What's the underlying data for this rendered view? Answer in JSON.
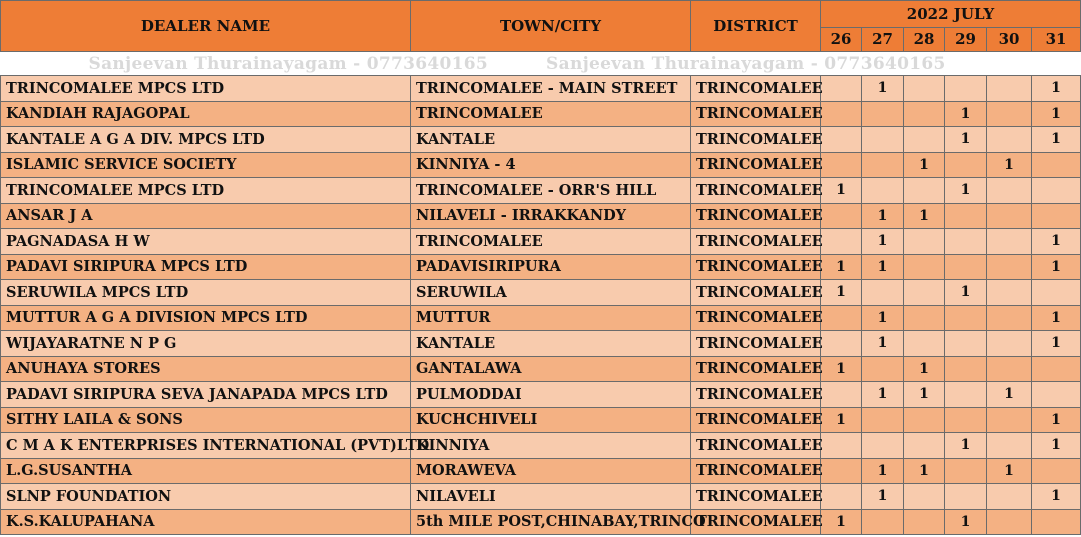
{
  "header": {
    "dealer_name": "DEALER NAME",
    "town_city": "TOWN/CITY",
    "district": "DISTRICT",
    "period": "2022 JULY",
    "days": [
      "26",
      "27",
      "28",
      "29",
      "30",
      "31"
    ]
  },
  "watermark": {
    "text1": "Sanjeevan Thurainayagam - 0773640165",
    "text2": "Sanjeevan Thurainayagam - 0773640165"
  },
  "rows": [
    {
      "dealer": "TRINCOMALEE MPCS LTD",
      "town": "TRINCOMALEE - MAIN STREET",
      "district": "TRINCOMALEE",
      "d": [
        "",
        "1",
        "",
        "",
        "",
        "1"
      ]
    },
    {
      "dealer": "KANDIAH RAJAGOPAL",
      "town": "TRINCOMALEE",
      "district": "TRINCOMALEE",
      "d": [
        "",
        "",
        "",
        "1",
        "",
        "1"
      ]
    },
    {
      "dealer": "KANTALE A G A DIV. MPCS LTD",
      "town": "KANTALE",
      "district": "TRINCOMALEE",
      "d": [
        "",
        "",
        "",
        "1",
        "",
        "1"
      ]
    },
    {
      "dealer": "ISLAMIC SERVICE SOCIETY",
      "town": "KINNIYA - 4",
      "district": "TRINCOMALEE",
      "d": [
        "",
        "",
        "1",
        "",
        "1",
        ""
      ]
    },
    {
      "dealer": "TRINCOMALEE MPCS LTD",
      "town": "TRINCOMALEE - ORR'S  HILL",
      "district": "TRINCOMALEE",
      "d": [
        "1",
        "",
        "",
        "1",
        "",
        ""
      ]
    },
    {
      "dealer": "ANSAR  J A",
      "town": "NILAVELI - IRRAKKANDY",
      "district": "TRINCOMALEE",
      "d": [
        "",
        "1",
        "1",
        "",
        "",
        ""
      ]
    },
    {
      "dealer": "PAGNADASA  H W",
      "town": "TRINCOMALEE",
      "district": "TRINCOMALEE",
      "d": [
        "",
        "1",
        "",
        "",
        "",
        "1"
      ]
    },
    {
      "dealer": "PADAVI SIRIPURA MPCS LTD",
      "town": "PADAVISIRIPURA",
      "district": "TRINCOMALEE",
      "d": [
        "1",
        "1",
        "",
        "",
        "",
        "1"
      ]
    },
    {
      "dealer": "SERUWILA MPCS LTD",
      "town": "SERUWILA",
      "district": "TRINCOMALEE",
      "d": [
        "1",
        "",
        "",
        "1",
        "",
        ""
      ]
    },
    {
      "dealer": "MUTTUR A G A DIVISION MPCS LTD",
      "town": "MUTTUR",
      "district": "TRINCOMALEE",
      "d": [
        "",
        "1",
        "",
        "",
        "",
        "1"
      ]
    },
    {
      "dealer": "WIJAYARATNE  N P G",
      "town": "KANTALE",
      "district": "TRINCOMALEE",
      "d": [
        "",
        "1",
        "",
        "",
        "",
        "1"
      ]
    },
    {
      "dealer": "ANUHAYA STORES",
      "town": "GANTALAWA",
      "district": "TRINCOMALEE",
      "d": [
        "1",
        "",
        "1",
        "",
        "",
        ""
      ]
    },
    {
      "dealer": "PADAVI SIRIPURA SEVA JANAPADA MPCS LTD",
      "town": "PULMODDAI",
      "district": "TRINCOMALEE",
      "d": [
        "",
        "1",
        "1",
        "",
        "1",
        ""
      ]
    },
    {
      "dealer": "SITHY LAILA  & SONS",
      "town": "KUCHCHIVELI",
      "district": "TRINCOMALEE",
      "d": [
        "1",
        "",
        "",
        "",
        "",
        "1"
      ]
    },
    {
      "dealer": "C M A K ENTERPRISES INTERNATIONAL (PVT)LTD",
      "town": "KINNIYA",
      "district": "TRINCOMALEE",
      "d": [
        "",
        "",
        "",
        "1",
        "",
        "1"
      ]
    },
    {
      "dealer": "L.G.SUSANTHA",
      "town": "MORAWEVA",
      "district": "TRINCOMALEE",
      "d": [
        "",
        "1",
        "1",
        "",
        "1",
        ""
      ]
    },
    {
      "dealer": "SLNP FOUNDATION",
      "town": "NILAVELI",
      "district": "TRINCOMALEE",
      "d": [
        "",
        "1",
        "",
        "",
        "",
        "1"
      ]
    },
    {
      "dealer": "K.S.KALUPAHANA",
      "town": "5th MILE POST,CHINABAY,TRINCO",
      "district": "TRINCOMALEE",
      "d": [
        "1",
        "",
        "",
        "1",
        "",
        ""
      ]
    }
  ]
}
